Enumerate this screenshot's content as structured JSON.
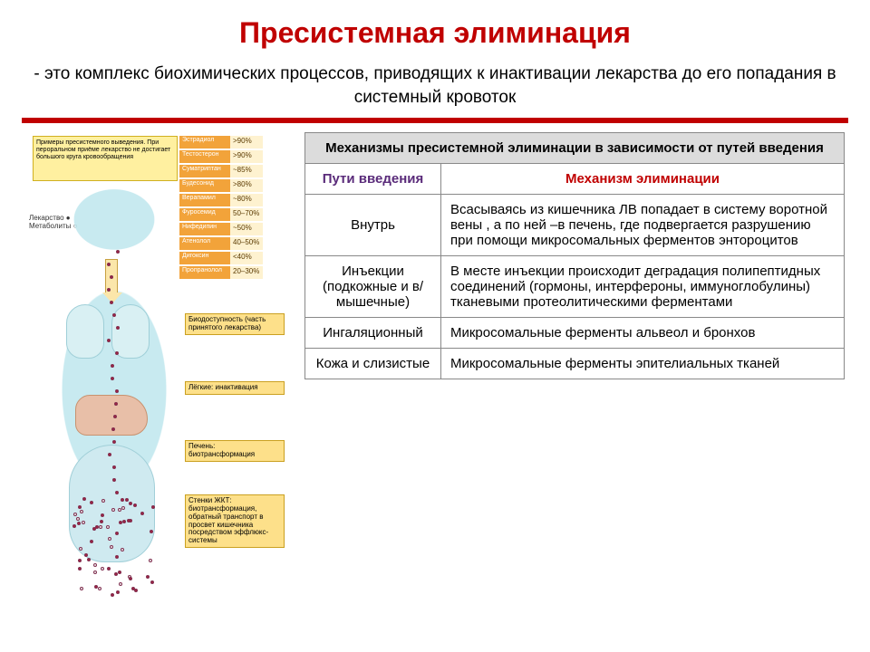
{
  "title": {
    "text": "Пресистемная элиминация",
    "color": "#c00000",
    "fontsize": 32
  },
  "subtitle": {
    "bullet": "-",
    "text": "это комплекс биохимических процессов, приводящих к инактивации лекарства до его попадания в системный кровоток",
    "color": "#000000",
    "fontsize": 19
  },
  "divider_color": "#c00000",
  "table": {
    "title": "Механизмы пресистемной элиминации в зависимости от путей введения",
    "title_bg": "#dcdcdc",
    "columns": [
      {
        "label": "Пути введения",
        "color": "#5a2b7a"
      },
      {
        "label": "Механизм элиминации",
        "color": "#c00000"
      }
    ],
    "rows": [
      {
        "route": "Внутрь",
        "mechanism": "Всасываясь из кишечника ЛВ попадает в систему воротной вены , а по ней –в печень, где подвергается разрушению при помощи микросомальных ферментов энтороцитов"
      },
      {
        "route": "Инъекции (подкожные и в/мышечные)",
        "mechanism": "В месте инъекции происходит деградация полипептидных соединений (гормоны, интерфероны, иммуноглобулины) тканевыми протеолитическими ферментами"
      },
      {
        "route": "Ингаляционный",
        "mechanism": "Микросомальные ферменты альвеол и бронхов"
      },
      {
        "route": "Кожа и слизистые",
        "mechanism": "Микросомальные ферменты эпителиальных тканей"
      }
    ],
    "border_color": "#888888",
    "route_col_width": 150
  },
  "diagram": {
    "note_box": "Примеры пресистемного выведения. При пероральном приёме лекарство не достигает большого круга кровообращения",
    "legend": {
      "drug": "Лекарство ●",
      "metabolite": "Метаболиты ○"
    },
    "drugs": [
      {
        "name": "Эстрадиол",
        "pct": ">90%"
      },
      {
        "name": "Тестостерон",
        "pct": ">90%"
      },
      {
        "name": "Суматриптан",
        "pct": "~85%"
      },
      {
        "name": "Будесонид",
        "pct": ">80%"
      },
      {
        "name": "Верапамил",
        "pct": "~80%"
      },
      {
        "name": "Фуросемид",
        "pct": "50–70%"
      },
      {
        "name": "Нифедипин",
        "pct": "~50%"
      },
      {
        "name": "Атенолол",
        "pct": "40–50%"
      },
      {
        "name": "Дигоксин",
        "pct": "<40%"
      },
      {
        "name": "Пропранолол",
        "pct": "20–30%"
      }
    ],
    "callouts": {
      "bioavailability": "Биодоступность (часть принятого лекарства)",
      "lungs": "Лёгкие: инактивация",
      "liver": "Печень: биотрансформация",
      "gi": "Стенки ЖКТ: биотрансформация, обратный транспорт в просвет кишечника посредством эффлюкс-системы"
    },
    "dot_color_drug": "#a02040",
    "dot_color_met": "#ffffff",
    "silhouette_color": "#bfe7ee"
  }
}
